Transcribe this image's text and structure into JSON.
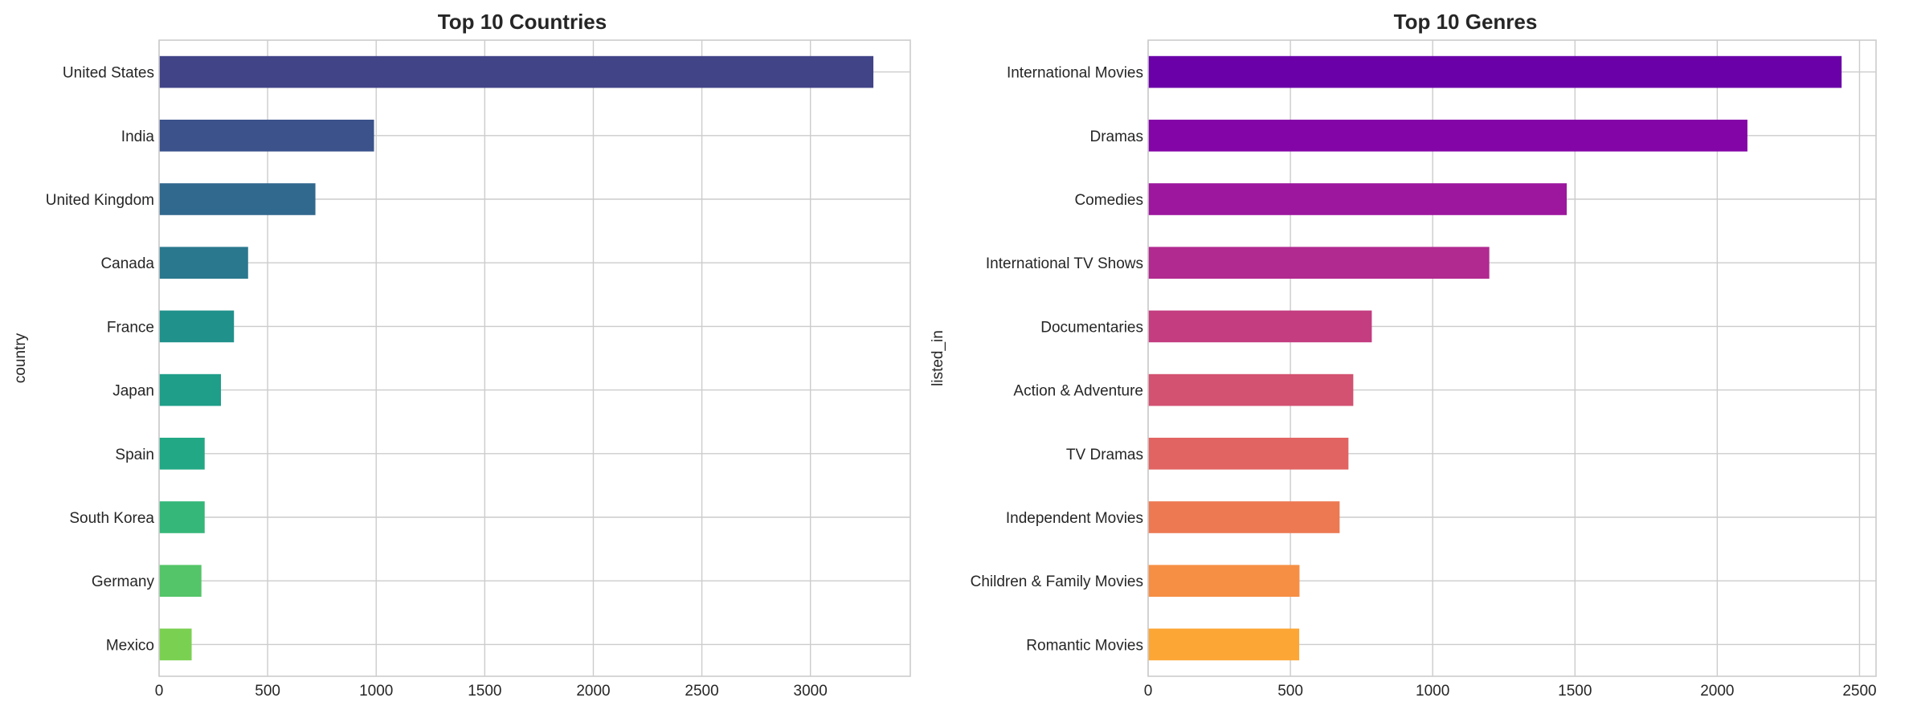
{
  "chart_data": [
    {
      "type": "bar",
      "orientation": "horizontal",
      "title": "Top 10 Countries",
      "xlabel": "",
      "ylabel": "country",
      "categories": [
        "United States",
        "India",
        "United Kingdom",
        "Canada",
        "France",
        "Japan",
        "Spain",
        "South Korea",
        "Germany",
        "Mexico"
      ],
      "values": [
        3290,
        990,
        720,
        410,
        345,
        285,
        210,
        210,
        195,
        150
      ],
      "xlim": [
        0,
        3460
      ],
      "xticks": [
        0,
        500,
        1000,
        1500,
        2000,
        2500,
        3000
      ],
      "grid": true,
      "colors": [
        "#414487",
        "#3b528b",
        "#31688e",
        "#2a788e",
        "#21918c",
        "#1f9e89",
        "#22a884",
        "#35b779",
        "#54c568",
        "#7ad151"
      ]
    },
    {
      "type": "bar",
      "orientation": "horizontal",
      "title": "Top 10 Genres",
      "xlabel": "",
      "ylabel": "listed_in",
      "categories": [
        "International Movies",
        "Dramas",
        "Comedies",
        "International TV Shows",
        "Documentaries",
        "Action & Adventure",
        "TV Dramas",
        "Independent Movies",
        "Children & Family Movies",
        "Romantic Movies"
      ],
      "values": [
        2437,
        2106,
        1471,
        1199,
        786,
        721,
        704,
        673,
        532,
        531
      ],
      "xlim": [
        0,
        2558
      ],
      "xticks": [
        0,
        500,
        1000,
        1500,
        2000,
        2500
      ],
      "grid": true,
      "colors": [
        "#6a00a8",
        "#8405a7",
        "#9c179e",
        "#b12a90",
        "#c33d80",
        "#d35171",
        "#e16462",
        "#ed7953",
        "#f68f44",
        "#fca636"
      ]
    }
  ]
}
